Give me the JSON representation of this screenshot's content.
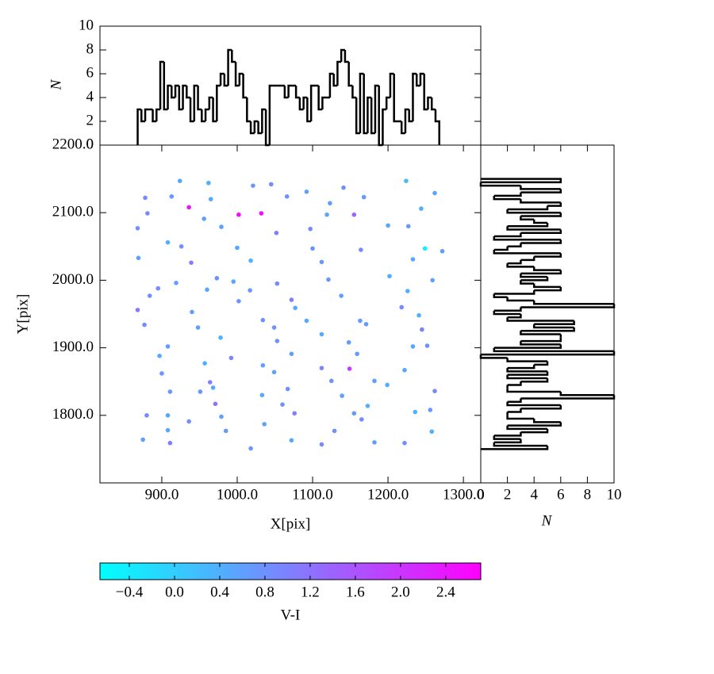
{
  "chart_data": [
    {
      "type": "scatter",
      "x_label": "X[pix]",
      "y_label": "Y[pix]",
      "xlim": [
        818,
        1323
      ],
      "ylim": [
        1700,
        2200
      ],
      "xticks": [
        {
          "value": 900,
          "label": "900.0"
        },
        {
          "value": 1000,
          "label": "1000.0"
        },
        {
          "value": 1100,
          "label": "1100.0"
        },
        {
          "value": 1200,
          "label": "1200.0"
        },
        {
          "value": 1300,
          "label": "1300.0"
        }
      ],
      "yticks": [
        {
          "value": 1800,
          "label": "1800.0"
        },
        {
          "value": 1900,
          "label": "1900.0"
        },
        {
          "value": 2000,
          "label": "2000.0"
        },
        {
          "value": 2100,
          "label": "2100.0"
        },
        {
          "value": 2200,
          "label": "2200.0"
        }
      ],
      "x": [
        924,
        962,
        1021,
        1045,
        1092,
        1141,
        1224,
        1262,
        878,
        913,
        936,
        965,
        1002,
        1032,
        1066,
        1123,
        1168,
        1244,
        881,
        956,
        1052,
        1119,
        1155,
        1227,
        868,
        908,
        979,
        1097,
        1200,
        1249,
        1272,
        926,
        1000,
        1100,
        1164,
        869,
        939,
        1018,
        1112,
        1233,
        919,
        973,
        995,
        1053,
        1121,
        1202,
        1259,
        895,
        960,
        1017,
        1072,
        1138,
        1226,
        884,
        1002,
        1077,
        1218,
        868,
        940,
        1034,
        1092,
        1163,
        1241,
        877,
        948,
        1049,
        1112,
        1171,
        1245,
        908,
        978,
        1053,
        1148,
        1233,
        897,
        992,
        1072,
        1159,
        1252,
        957,
        1034,
        1112,
        1149,
        1222,
        900,
        964,
        1049,
        1125,
        1199,
        911,
        968,
        1067,
        1182,
        1262,
        951,
        1033,
        1139,
        971,
        1060,
        1173,
        1256,
        880,
        908,
        979,
        1076,
        1155,
        1236,
        936,
        1036,
        1165,
        908,
        985,
        1129,
        1258,
        875,
        911,
        1018,
        1072,
        1112,
        1182,
        1222
      ],
      "y": [
        2147,
        2144,
        2140,
        2142,
        2131,
        2137,
        2147,
        2129,
        2122,
        2124,
        2108,
        2120,
        2097,
        2099,
        2124,
        2114,
        2123,
        2106,
        2099,
        2091,
        2070,
        2097,
        2097,
        2080,
        2077,
        2056,
        2079,
        2076,
        2081,
        2047,
        2043,
        2050,
        2048,
        2047,
        2045,
        2033,
        2026,
        2029,
        2027,
        2031,
        1996,
        2003,
        1998,
        1995,
        2001,
        2006,
        2000,
        1988,
        1986,
        1985,
        1971,
        1977,
        1984,
        1977,
        1969,
        1959,
        1960,
        1956,
        1953,
        1941,
        1940,
        1940,
        1948,
        1934,
        1930,
        1930,
        1920,
        1935,
        1927,
        1902,
        1915,
        1910,
        1908,
        1902,
        1888,
        1885,
        1891,
        1891,
        1903,
        1877,
        1874,
        1870,
        1869,
        1867,
        1862,
        1849,
        1864,
        1851,
        1845,
        1835,
        1841,
        1839,
        1851,
        1836,
        1835,
        1830,
        1829,
        1817,
        1816,
        1814,
        1808,
        1800,
        1800,
        1798,
        1803,
        1803,
        1805,
        1791,
        1787,
        1794,
        1778,
        1777,
        1777,
        1776,
        1764,
        1759,
        1751,
        1763,
        1757,
        1760,
        1759
      ],
      "c": [
        0.5,
        0.4,
        0.7,
        0.9,
        0.6,
        0.8,
        0.3,
        0.6,
        0.9,
        0.7,
        2.5,
        0.5,
        2.6,
        2.55,
        0.8,
        0.6,
        0.7,
        0.4,
        0.9,
        0.6,
        1.0,
        0.5,
        1.4,
        0.7,
        0.8,
        0.4,
        0.6,
        0.9,
        0.5,
        -0.5,
        0.6,
        0.8,
        0.5,
        0.7,
        0.9,
        0.6,
        1.0,
        0.4,
        0.7,
        0.5,
        0.6,
        0.8,
        0.5,
        0.9,
        0.7,
        0.4,
        0.6,
        0.8,
        0.5,
        0.7,
        1.0,
        0.6,
        0.4,
        0.8,
        0.7,
        0.5,
        0.9,
        1.1,
        0.6,
        0.8,
        0.5,
        0.7,
        0.4,
        0.9,
        0.6,
        0.8,
        0.5,
        0.7,
        1.0,
        0.6,
        0.4,
        0.8,
        0.7,
        0.5,
        0.5,
        0.9,
        0.6,
        0.7,
        0.8,
        0.4,
        0.6,
        0.9,
        1.9,
        0.5,
        0.7,
        1.0,
        0.6,
        0.8,
        0.4,
        0.7,
        0.5,
        0.8,
        0.6,
        0.9,
        0.7,
        0.5,
        0.6,
        1.2,
        0.8,
        0.4,
        0.7,
        0.9,
        0.5,
        0.6,
        1.0,
        0.7,
        0.4,
        0.8,
        0.6,
        0.9,
        0.5,
        0.7,
        0.8,
        0.4,
        0.6,
        1.0,
        0.7,
        0.5,
        0.9,
        0.6,
        0.8
      ],
      "colormap": [
        "#00ffff",
        "#ff00ff"
      ],
      "colorbar": {
        "label": "V-I",
        "clim": [
          -0.66,
          2.71
        ],
        "ticks": [
          {
            "value": -0.4,
            "label": "−0.4"
          },
          {
            "value": 0.0,
            "label": "0.0"
          },
          0.4,
          0.8,
          1.2,
          1.6,
          {
            "value": 2.0,
            "label": "2.0"
          },
          2.4
        ]
      }
    },
    {
      "type": "histogram",
      "orientation": "vertical",
      "y_label": "N",
      "color": "#000000",
      "xlim": [
        818,
        1323
      ],
      "ylim": [
        0,
        10
      ],
      "yticks": [
        0,
        2,
        4,
        6,
        8,
        10
      ],
      "bins": [
        868,
        873,
        878,
        883,
        888,
        893,
        898,
        903,
        908,
        913,
        918,
        923,
        928,
        933,
        938,
        943,
        948,
        953,
        958,
        963,
        968,
        973,
        978,
        983,
        988,
        993,
        998,
        1003,
        1008,
        1013,
        1018,
        1023,
        1028,
        1033,
        1038,
        1043,
        1048,
        1053,
        1058,
        1063,
        1068,
        1073,
        1078,
        1083,
        1088,
        1093,
        1098,
        1103,
        1108,
        1113,
        1118,
        1123,
        1128,
        1133,
        1138,
        1143,
        1148,
        1153,
        1158,
        1163,
        1168,
        1173,
        1178,
        1183,
        1188,
        1193,
        1198,
        1203,
        1208,
        1213,
        1218,
        1223,
        1228,
        1233,
        1238,
        1243,
        1248,
        1253,
        1258,
        1263,
        1268
      ],
      "counts": [
        3,
        2,
        3,
        3,
        2,
        3,
        7,
        3,
        5,
        4,
        5,
        3,
        5,
        4,
        2,
        5,
        3,
        2,
        3,
        4,
        2,
        5,
        6,
        5,
        8,
        7,
        5,
        6,
        4,
        2,
        1,
        2,
        1,
        3,
        0,
        5,
        5,
        5,
        5,
        4,
        5,
        5,
        4,
        3,
        4,
        2,
        5,
        5,
        3,
        4,
        4,
        6,
        5,
        7,
        8,
        7,
        5,
        4,
        1,
        6,
        1,
        4,
        1,
        5,
        0,
        3,
        4,
        6,
        2,
        2,
        1,
        3,
        2,
        6,
        5,
        6,
        3,
        4,
        3,
        2
      ]
    },
    {
      "type": "histogram",
      "orientation": "horizontal",
      "x_label": "N",
      "color": "#000000",
      "xlim": [
        0,
        10
      ],
      "ylim": [
        1700,
        2200
      ],
      "xticks": [
        0,
        2,
        4,
        6,
        8,
        10
      ],
      "bins": [
        1750,
        1755,
        1760,
        1765,
        1770,
        1775,
        1780,
        1785,
        1790,
        1795,
        1800,
        1805,
        1810,
        1815,
        1820,
        1825,
        1830,
        1835,
        1840,
        1845,
        1850,
        1855,
        1860,
        1865,
        1870,
        1875,
        1880,
        1885,
        1890,
        1895,
        1900,
        1905,
        1910,
        1915,
        1920,
        1925,
        1930,
        1935,
        1940,
        1945,
        1950,
        1955,
        1960,
        1965,
        1970,
        1975,
        1980,
        1985,
        1990,
        1995,
        2000,
        2005,
        2010,
        2015,
        2020,
        2025,
        2030,
        2035,
        2040,
        2045,
        2050,
        2055,
        2060,
        2065,
        2070,
        2075,
        2080,
        2085,
        2090,
        2095,
        2100,
        2105,
        2110,
        2115,
        2120,
        2125,
        2130,
        2135,
        2140,
        2145,
        2150
      ],
      "counts": [
        5,
        1,
        3,
        1,
        3,
        5,
        2,
        6,
        4,
        2,
        2,
        3,
        6,
        2,
        3,
        10,
        6,
        2,
        2,
        3,
        5,
        2,
        5,
        2,
        4,
        5,
        2,
        0,
        10,
        1,
        6,
        3,
        6,
        6,
        3,
        7,
        4,
        7,
        2,
        3,
        1,
        3,
        10,
        4,
        2,
        1,
        4,
        6,
        4,
        3,
        5,
        3,
        6,
        4,
        2,
        3,
        4,
        6,
        1,
        2,
        3,
        6,
        1,
        3,
        6,
        2,
        5,
        4,
        3,
        6,
        2,
        5,
        6,
        3,
        1,
        3,
        6,
        3,
        0,
        6
      ]
    }
  ]
}
